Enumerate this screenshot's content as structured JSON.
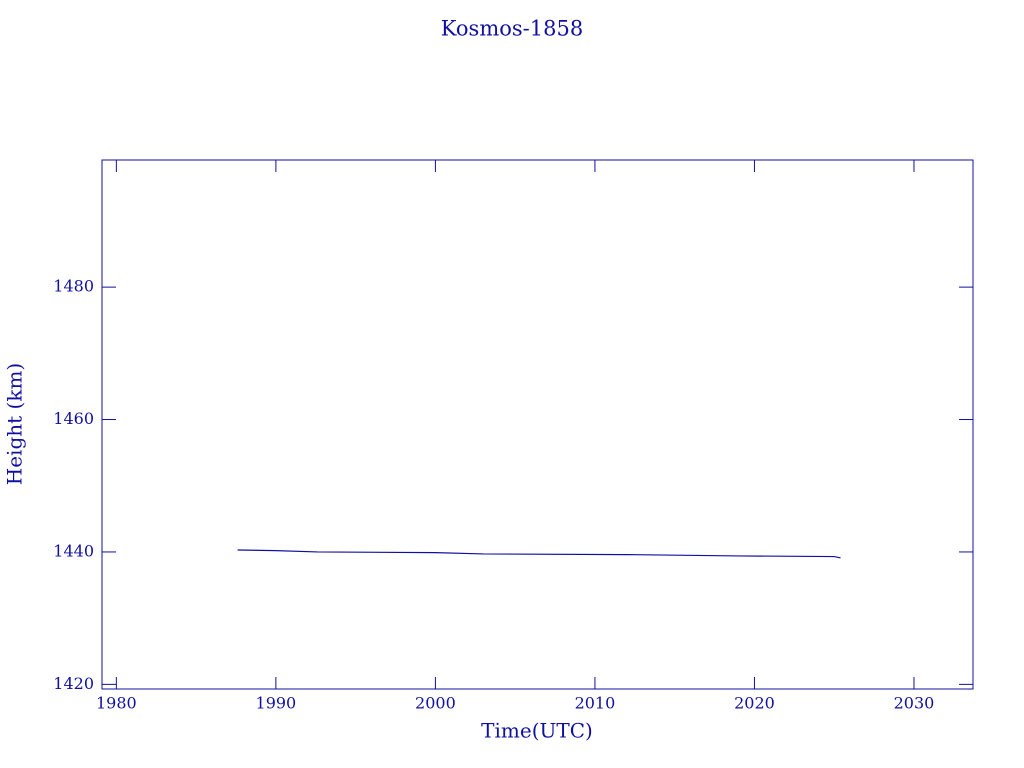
{
  "chart_data": {
    "type": "line",
    "title": "Kosmos-1858",
    "xlabel": "Time(UTC)",
    "ylabel": "Height (km)",
    "x": [
      1987.6,
      1990.0,
      1992.6,
      2000.0,
      2003.0,
      2012.0,
      2019.0,
      2025.0,
      2025.4
    ],
    "series": [
      {
        "name": "Height",
        "color": "#1010a0",
        "values": [
          1440.3,
          1440.2,
          1440.0,
          1439.9,
          1439.7,
          1439.6,
          1439.4,
          1439.3,
          1439.1
        ]
      }
    ],
    "xlim": [
      1979.1,
      2033.7
    ],
    "xticks": [
      1980,
      1990,
      2000,
      2010,
      2020,
      2030
    ],
    "ylim": [
      1419.3,
      1499.2
    ],
    "yticks": [
      1420,
      1440,
      1460,
      1480
    ],
    "grid": false
  }
}
